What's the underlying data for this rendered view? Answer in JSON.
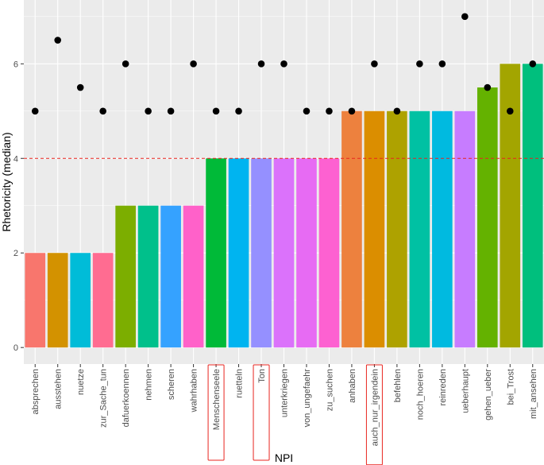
{
  "chart_data": {
    "type": "bar",
    "title": "",
    "xlabel": "NPI",
    "ylabel": "Rhetoricity (median)",
    "ylim": [
      -0.35,
      7.35
    ],
    "yticks": [
      0,
      2,
      4,
      6
    ],
    "grid": true,
    "background_color": "#ebebeb",
    "grid_color": "#ffffff",
    "categories": [
      "absprechen",
      "ausstehen",
      "nuetze",
      "zur_Sache_tun",
      "dafuerkoennen",
      "nehmen",
      "scheren",
      "wahrhaben",
      "Menschenseele",
      "ruetteln",
      "Ton",
      "unterkriegen",
      "von_ungefaehr",
      "zu_suchen",
      "anhaben",
      "auch_nur_irgendein",
      "befehlen",
      "noch_hoeren",
      "reinreden",
      "ueberhaupt",
      "gehen_ueber",
      "bei_Trost",
      "mit_ansehen"
    ],
    "values": [
      2,
      2,
      2,
      2,
      3,
      3,
      3,
      3,
      4,
      4,
      4,
      4,
      4,
      4,
      5,
      5,
      5,
      5,
      5,
      5,
      5.5,
      6,
      6
    ],
    "bar_colors": [
      "#f8766d",
      "#d39200",
      "#00bcd8",
      "#ff6c91",
      "#7cae00",
      "#00c08b",
      "#35a2ff",
      "#ff61c9",
      "#00ba38",
      "#00b4f0",
      "#9590ff",
      "#db72fb",
      "#e76bf3",
      "#fd61d1",
      "#ed813e",
      "#db8e00",
      "#aea200",
      "#00c1a3",
      "#00bae0",
      "#c77cff",
      "#64b200",
      "#a3a500",
      "#00bf7d"
    ],
    "points": {
      "name": "second measure",
      "color": "#000000",
      "values": [
        5,
        6.5,
        5.5,
        5,
        6,
        5,
        5,
        6,
        5,
        5,
        6,
        6,
        5,
        5,
        5,
        6,
        5,
        6,
        6,
        7,
        5.5,
        5,
        6
      ]
    },
    "reference_line": {
      "y": 4,
      "color": "#e8251f",
      "style": "dashed"
    },
    "highlighted_categories": [
      "Menschenseele",
      "Ton",
      "auch_nur_irgendein"
    ],
    "highlight_color": "#e8251f"
  }
}
